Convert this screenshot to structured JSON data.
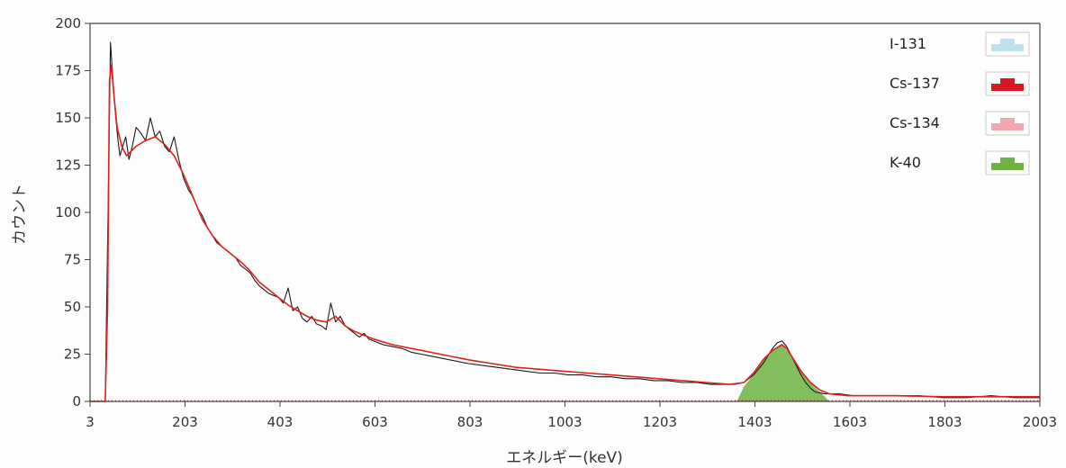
{
  "chart_data": {
    "type": "line",
    "title": "",
    "xlabel": "エネルギー(keV)",
    "ylabel": "カウント",
    "xlim": [
      3,
      2003
    ],
    "ylim": [
      0,
      200
    ],
    "x_ticks": [
      3,
      203,
      403,
      603,
      803,
      1003,
      1203,
      1403,
      1603,
      1803,
      2003
    ],
    "y_ticks": [
      0,
      25,
      50,
      75,
      100,
      125,
      150,
      175,
      200
    ],
    "grid": false,
    "legend_position": "top-right",
    "legend": [
      {
        "label": "I-131",
        "color": "#bfe0ee"
      },
      {
        "label": "Cs-137",
        "color": "#d71920"
      },
      {
        "label": "Cs-134",
        "color": "#f2a7b0"
      },
      {
        "label": "K-40",
        "color": "#6db33f"
      }
    ],
    "series": [
      {
        "role": "measured",
        "color": "#1a1a1a",
        "x": [
          3,
          35,
          42,
          46,
          50,
          54,
          58,
          62,
          66,
          72,
          78,
          85,
          92,
          100,
          110,
          120,
          130,
          140,
          150,
          160,
          170,
          180,
          190,
          200,
          210,
          220,
          230,
          240,
          250,
          260,
          270,
          280,
          290,
          300,
          310,
          320,
          330,
          340,
          350,
          360,
          370,
          380,
          390,
          400,
          410,
          420,
          430,
          440,
          450,
          460,
          470,
          480,
          490,
          500,
          510,
          520,
          530,
          540,
          550,
          560,
          570,
          580,
          590,
          600,
          620,
          640,
          660,
          680,
          700,
          720,
          740,
          760,
          780,
          800,
          830,
          860,
          890,
          920,
          950,
          980,
          1010,
          1040,
          1070,
          1100,
          1130,
          1160,
          1190,
          1220,
          1250,
          1280,
          1310,
          1340,
          1360,
          1380,
          1400,
          1420,
          1430,
          1440,
          1450,
          1460,
          1470,
          1480,
          1490,
          1500,
          1510,
          1520,
          1530,
          1550,
          1580,
          1610,
          1650,
          1700,
          1750,
          1800,
          1850,
          1900,
          1950,
          2003
        ],
        "y": [
          0,
          0,
          120,
          190,
          175,
          160,
          148,
          138,
          130,
          135,
          140,
          128,
          135,
          145,
          142,
          138,
          150,
          140,
          143,
          135,
          132,
          140,
          128,
          118,
          112,
          108,
          102,
          98,
          92,
          88,
          84,
          82,
          80,
          78,
          76,
          72,
          70,
          68,
          64,
          61,
          59,
          57,
          56,
          55,
          52,
          60,
          48,
          50,
          44,
          42,
          45,
          41,
          40,
          38,
          52,
          42,
          45,
          40,
          38,
          36,
          34,
          36,
          33,
          32,
          30,
          29,
          28,
          26,
          25,
          24,
          23,
          22,
          21,
          20,
          19,
          18,
          17,
          16,
          15,
          15,
          14,
          14,
          13,
          13,
          12,
          12,
          11,
          11,
          10,
          10,
          9,
          9,
          9,
          10,
          14,
          20,
          24,
          28,
          31,
          32,
          29,
          24,
          19,
          14,
          10,
          7,
          5,
          4,
          4,
          3,
          3,
          3,
          3,
          2,
          2,
          3,
          2,
          2
        ]
      },
      {
        "role": "fit",
        "color": "#e02020",
        "x": [
          3,
          35,
          40,
          44,
          48,
          54,
          60,
          70,
          80,
          100,
          120,
          140,
          160,
          180,
          200,
          220,
          240,
          260,
          280,
          300,
          320,
          340,
          360,
          380,
          400,
          420,
          440,
          460,
          480,
          500,
          520,
          540,
          560,
          580,
          600,
          640,
          680,
          720,
          760,
          800,
          850,
          900,
          950,
          1000,
          1050,
          1100,
          1150,
          1200,
          1250,
          1300,
          1350,
          1380,
          1400,
          1420,
          1440,
          1460,
          1470,
          1480,
          1500,
          1520,
          1540,
          1560,
          1600,
          1700,
          1800,
          1900,
          2003
        ],
        "y": [
          0,
          0,
          50,
          170,
          178,
          160,
          145,
          135,
          130,
          135,
          138,
          140,
          136,
          130,
          120,
          108,
          96,
          88,
          82,
          78,
          74,
          69,
          63,
          59,
          55,
          51,
          48,
          45,
          43,
          42,
          45,
          40,
          37,
          35,
          33,
          30,
          28,
          26,
          24,
          22,
          20,
          18,
          17,
          16,
          15,
          14,
          13,
          12,
          11,
          10,
          9,
          10,
          15,
          22,
          27,
          30,
          28,
          24,
          16,
          10,
          6,
          4,
          3,
          3,
          2.5,
          2.5,
          2.5
        ]
      },
      {
        "role": "K-40 peak",
        "color": "#6db33f",
        "x": [
          1365,
          1380,
          1400,
          1420,
          1440,
          1460,
          1480,
          1500,
          1520,
          1540,
          1560
        ],
        "y": [
          0,
          8,
          14,
          22,
          27,
          30,
          24,
          16,
          10,
          5,
          0
        ]
      }
    ]
  }
}
